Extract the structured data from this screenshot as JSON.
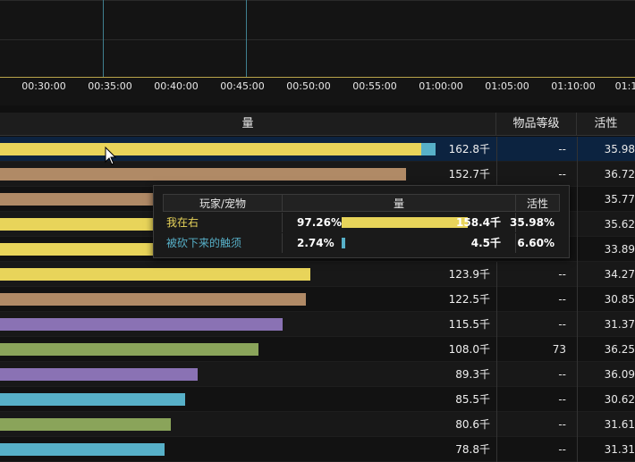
{
  "timeline": {
    "ticks": [
      "00:30:00",
      "00:35:00",
      "00:40:00",
      "00:45:00",
      "00:50:00",
      "00:55:00",
      "01:00:00",
      "01:05:00",
      "01:10:00",
      "01:1"
    ]
  },
  "table": {
    "headers": {
      "amount": "量",
      "item_level": "物品等级",
      "activity": "活性"
    },
    "rows": [
      {
        "bar_color": "#e8d45a",
        "bar_fraction": 0.862,
        "bar2_fraction": 0.03,
        "amount": "162.8千",
        "item_level": "--",
        "activity": "35.98",
        "selected": true
      },
      {
        "bar_color": "#b08a66",
        "bar_fraction": 0.832,
        "amount": "152.7千",
        "item_level": "--",
        "activity": "36.72"
      },
      {
        "bar_color": "#b08a66",
        "bar_fraction": 0.78,
        "amount": "",
        "item_level": "",
        "activity": "35.77"
      },
      {
        "bar_color": "#e8d45a",
        "bar_fraction": 0.76,
        "amount": "",
        "item_level": "",
        "activity": "35.62"
      },
      {
        "bar_color": "#e8d45a",
        "bar_fraction": 0.74,
        "amount": "",
        "item_level": "",
        "activity": "33.89"
      },
      {
        "bar_color": "#e8d45a",
        "bar_fraction": 0.636,
        "amount": "123.9千",
        "item_level": "--",
        "activity": "34.27"
      },
      {
        "bar_color": "#b08a66",
        "bar_fraction": 0.626,
        "amount": "122.5千",
        "item_level": "--",
        "activity": "30.85"
      },
      {
        "bar_color": "#8a72b4",
        "bar_fraction": 0.578,
        "amount": "115.5千",
        "item_level": "--",
        "activity": "31.37"
      },
      {
        "bar_color": "#8aa45a",
        "bar_fraction": 0.53,
        "amount": "108.0千",
        "item_level": "73",
        "activity": "36.25"
      },
      {
        "bar_color": "#8a72b4",
        "bar_fraction": 0.405,
        "amount": "89.3千",
        "item_level": "--",
        "activity": "36.09"
      },
      {
        "bar_color": "#57b0c8",
        "bar_fraction": 0.38,
        "amount": "85.5千",
        "item_level": "--",
        "activity": "30.62"
      },
      {
        "bar_color": "#8aa45a",
        "bar_fraction": 0.35,
        "amount": "80.6千",
        "item_level": "--",
        "activity": "31.61"
      },
      {
        "bar_color": "#57b0c8",
        "bar_fraction": 0.337,
        "amount": "78.8千",
        "item_level": "--",
        "activity": "31.31"
      }
    ]
  },
  "tooltip": {
    "headers": {
      "player": "玩家/宠物",
      "amount": "量",
      "activity": "活性"
    },
    "rows": [
      {
        "name": "我在右",
        "name_color": "#e8d45a",
        "percent": "97.26%",
        "bar_color": "#e8d45a",
        "bar_fraction": 0.9726,
        "amount": "158.4千",
        "activity": "35.98%"
      },
      {
        "name": "被砍下来的触须",
        "name_color": "#57b0c8",
        "percent": "2.74%",
        "bar_color": "#57b0c8",
        "bar_fraction": 0.0274,
        "amount": "4.5千",
        "activity": "6.60%"
      }
    ]
  }
}
